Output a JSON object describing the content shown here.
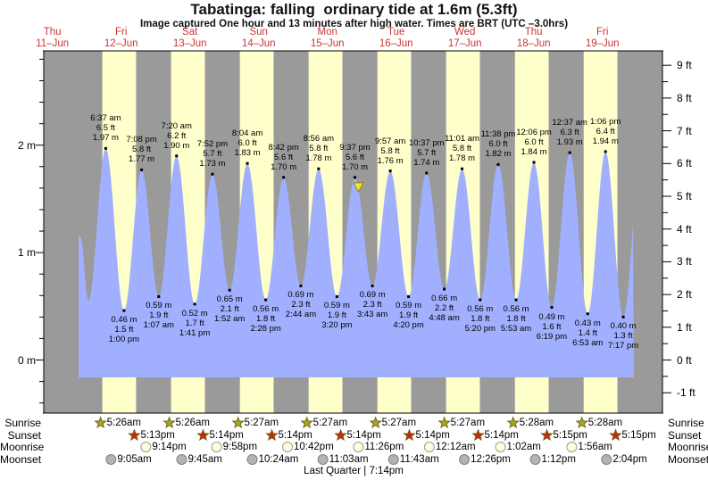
{
  "title": "Tabatinga: falling  ordinary tide at 1.6m (5.3ft)",
  "subtitle": "Image captured One hour and 13 minutes after high water. Times are BRT (UTC –3.0hrs)",
  "days": [
    {
      "weekday": "Thu",
      "date": "11–Jun"
    },
    {
      "weekday": "Fri",
      "date": "12–Jun"
    },
    {
      "weekday": "Sat",
      "date": "13–Jun"
    },
    {
      "weekday": "Sun",
      "date": "14–Jun"
    },
    {
      "weekday": "Mon",
      "date": "15–Jun"
    },
    {
      "weekday": "Tue",
      "date": "16–Jun"
    },
    {
      "weekday": "Wed",
      "date": "17–Jun"
    },
    {
      "weekday": "Thu",
      "date": "18–Jun"
    },
    {
      "weekday": "Fri",
      "date": "19–Jun"
    }
  ],
  "axes": {
    "left_labels": [
      {
        "text": "2 m",
        "m": 2
      },
      {
        "text": "1 m",
        "m": 1
      },
      {
        "text": "0 m",
        "m": 0
      }
    ],
    "right_labels": [
      {
        "text": "9 ft",
        "ft": 9
      },
      {
        "text": "8 ft",
        "ft": 8
      },
      {
        "text": "7 ft",
        "ft": 7
      },
      {
        "text": "6 ft",
        "ft": 6
      },
      {
        "text": "5 ft",
        "ft": 5
      },
      {
        "text": "4 ft",
        "ft": 4
      },
      {
        "text": "3 ft",
        "ft": 3
      },
      {
        "text": "2 ft",
        "ft": 2
      },
      {
        "text": "1 ft",
        "ft": 1
      },
      {
        "text": "0 ft",
        "ft": 0
      },
      {
        "text": "-1 ft",
        "ft": -1
      }
    ]
  },
  "chart_data": {
    "type": "area",
    "title": "Tabatinga tide heights, 11–19 Jun",
    "x_axis": {
      "days": 9,
      "first_day": "Thu 11–Jun",
      "last_day": "Fri 19–Jun"
    },
    "y_axis": {
      "left_unit": "m",
      "right_unit": "ft",
      "left_range": [
        -0.5,
        2.9
      ],
      "right_range": [
        -1,
        9
      ]
    },
    "current_level": {
      "m": 1.6,
      "ft": 5.3,
      "state": "falling",
      "day": 4,
      "hour": 22.83
    },
    "tides": [
      {
        "type": "high",
        "day": 1,
        "hour": 6.617,
        "time": "6:37 am",
        "ft": "6.5 ft",
        "m": "1.97 m",
        "value_m": 1.97
      },
      {
        "type": "high",
        "day": 1,
        "hour": 19.133,
        "time": "7:08 pm",
        "ft": "5.8 ft",
        "m": "1.77 m",
        "value_m": 1.77
      },
      {
        "type": "high",
        "day": 2,
        "hour": 7.333,
        "time": "7:20 am",
        "ft": "6.2 ft",
        "m": "1.90 m",
        "value_m": 1.9
      },
      {
        "type": "high",
        "day": 2,
        "hour": 19.867,
        "time": "7:52 pm",
        "ft": "5.7 ft",
        "m": "1.73 m",
        "value_m": 1.73
      },
      {
        "type": "high",
        "day": 3,
        "hour": 8.067,
        "time": "8:04 am",
        "ft": "6.0 ft",
        "m": "1.83 m",
        "value_m": 1.83
      },
      {
        "type": "high",
        "day": 3,
        "hour": 20.7,
        "time": "8:42 pm",
        "ft": "5.6 ft",
        "m": "1.70 m",
        "value_m": 1.7
      },
      {
        "type": "high",
        "day": 4,
        "hour": 8.933,
        "time": "8:56 am",
        "ft": "5.8 ft",
        "m": "1.78 m",
        "value_m": 1.78
      },
      {
        "type": "high",
        "day": 4,
        "hour": 21.617,
        "time": "9:37 pm",
        "ft": "5.6 ft",
        "m": "1.70 m",
        "value_m": 1.7
      },
      {
        "type": "high",
        "day": 5,
        "hour": 9.95,
        "time": "9:57 am",
        "ft": "5.8 ft",
        "m": "1.76 m",
        "value_m": 1.76
      },
      {
        "type": "high",
        "day": 5,
        "hour": 22.617,
        "time": "10:37 pm",
        "ft": "5.7 ft",
        "m": "1.74 m",
        "value_m": 1.74
      },
      {
        "type": "high",
        "day": 6,
        "hour": 11.017,
        "time": "11:01 am",
        "ft": "5.8 ft",
        "m": "1.78 m",
        "value_m": 1.78
      },
      {
        "type": "high",
        "day": 6,
        "hour": 23.633,
        "time": "11:38 pm",
        "ft": "6.0 ft",
        "m": "1.82 m",
        "value_m": 1.82
      },
      {
        "type": "high",
        "day": 7,
        "hour": 12.1,
        "time": "12:06 pm",
        "ft": "6.0 ft",
        "m": "1.84 m",
        "value_m": 1.84
      },
      {
        "type": "high",
        "day": 8,
        "hour": 0.617,
        "time": "12:37 am",
        "ft": "6.3 ft",
        "m": "1.93 m",
        "value_m": 1.93
      },
      {
        "type": "high",
        "day": 8,
        "hour": 13.1,
        "time": "1:06 pm",
        "ft": "6.4 ft",
        "m": "1.94 m",
        "value_m": 1.94
      },
      {
        "type": "low",
        "day": 1,
        "hour": 13.0,
        "time": "1:00 pm",
        "ft": "1.5 ft",
        "m": "0.46 m",
        "value_m": 0.46
      },
      {
        "type": "low",
        "day": 2,
        "hour": 1.117,
        "time": "1:07 am",
        "ft": "1.9 ft",
        "m": "0.59 m",
        "value_m": 0.59
      },
      {
        "type": "low",
        "day": 2,
        "hour": 13.683,
        "time": "1:41 pm",
        "ft": "1.7 ft",
        "m": "0.52 m",
        "value_m": 0.52
      },
      {
        "type": "low",
        "day": 3,
        "hour": 1.867,
        "time": "1:52 am",
        "ft": "2.1 ft",
        "m": "0.65 m",
        "value_m": 0.65
      },
      {
        "type": "low",
        "day": 3,
        "hour": 14.467,
        "time": "2:28 pm",
        "ft": "1.8 ft",
        "m": "0.56 m",
        "value_m": 0.56
      },
      {
        "type": "low",
        "day": 4,
        "hour": 2.733,
        "time": "2:44 am",
        "ft": "2.3 ft",
        "m": "0.69 m",
        "value_m": 0.69
      },
      {
        "type": "low",
        "day": 4,
        "hour": 15.333,
        "time": "3:20 pm",
        "ft": "1.9 ft",
        "m": "0.59 m",
        "value_m": 0.59
      },
      {
        "type": "low",
        "day": 5,
        "hour": 3.717,
        "time": "3:43 am",
        "ft": "2.3 ft",
        "m": "0.69 m",
        "value_m": 0.69
      },
      {
        "type": "low",
        "day": 5,
        "hour": 16.333,
        "time": "4:20 pm",
        "ft": "1.9 ft",
        "m": "0.59 m",
        "value_m": 0.59
      },
      {
        "type": "low",
        "day": 6,
        "hour": 4.8,
        "time": "4:48 am",
        "ft": "2.2 ft",
        "m": "0.66 m",
        "value_m": 0.66
      },
      {
        "type": "low",
        "day": 6,
        "hour": 17.333,
        "time": "5:20 pm",
        "ft": "1.8 ft",
        "m": "0.56 m",
        "value_m": 0.56
      },
      {
        "type": "low",
        "day": 7,
        "hour": 5.883,
        "time": "5:53 am",
        "ft": "1.8 ft",
        "m": "0.56 m",
        "value_m": 0.56
      },
      {
        "type": "low",
        "day": 7,
        "hour": 18.317,
        "time": "6:19 pm",
        "ft": "1.6 ft",
        "m": "0.49 m",
        "value_m": 0.49
      },
      {
        "type": "low",
        "day": 8,
        "hour": 6.883,
        "time": "6:53 am",
        "ft": "1.4 ft",
        "m": "0.43 m",
        "value_m": 0.43
      },
      {
        "type": "low",
        "day": 8,
        "hour": 19.283,
        "time": "7:17 pm",
        "ft": "1.3 ft",
        "m": "0.40 m",
        "value_m": 0.4
      }
    ],
    "curve_anchors": [
      [
        0,
        21.8,
        1.15
      ],
      [
        1,
        0.55,
        0.55
      ],
      [
        1,
        6.617,
        1.97
      ],
      [
        1,
        13.0,
        0.46
      ],
      [
        1,
        19.133,
        1.77
      ],
      [
        2,
        1.117,
        0.59
      ],
      [
        2,
        7.333,
        1.9
      ],
      [
        2,
        13.683,
        0.52
      ],
      [
        2,
        19.867,
        1.73
      ],
      [
        3,
        1.867,
        0.65
      ],
      [
        3,
        8.067,
        1.83
      ],
      [
        3,
        14.467,
        0.56
      ],
      [
        3,
        20.7,
        1.7
      ],
      [
        4,
        2.733,
        0.69
      ],
      [
        4,
        8.933,
        1.78
      ],
      [
        4,
        15.333,
        0.59
      ],
      [
        4,
        21.617,
        1.7
      ],
      [
        5,
        3.717,
        0.69
      ],
      [
        5,
        9.95,
        1.76
      ],
      [
        5,
        16.333,
        0.59
      ],
      [
        5,
        22.617,
        1.74
      ],
      [
        6,
        4.8,
        0.66
      ],
      [
        6,
        11.017,
        1.78
      ],
      [
        6,
        17.333,
        0.56
      ],
      [
        6,
        23.633,
        1.82
      ],
      [
        7,
        5.883,
        0.56
      ],
      [
        7,
        12.1,
        1.84
      ],
      [
        7,
        18.317,
        0.49
      ],
      [
        8,
        0.617,
        1.93
      ],
      [
        8,
        6.883,
        0.43
      ],
      [
        8,
        13.1,
        1.94
      ],
      [
        8,
        19.283,
        0.4
      ],
      [
        9,
        1.617,
        1.95
      ]
    ],
    "daylight_days": [
      1,
      2,
      3,
      4,
      5,
      6,
      7,
      8
    ]
  },
  "astro": {
    "row_labels": [
      "Sunrise",
      "Sunset",
      "Moonrise",
      "Moonset"
    ],
    "sunrise": [
      {
        "day": 1,
        "hour": 5.433,
        "time": "5:26am"
      },
      {
        "day": 2,
        "hour": 5.433,
        "time": "5:26am"
      },
      {
        "day": 3,
        "hour": 5.45,
        "time": "5:27am"
      },
      {
        "day": 4,
        "hour": 5.45,
        "time": "5:27am"
      },
      {
        "day": 5,
        "hour": 5.45,
        "time": "5:27am"
      },
      {
        "day": 6,
        "hour": 5.45,
        "time": "5:27am"
      },
      {
        "day": 7,
        "hour": 5.467,
        "time": "5:28am"
      },
      {
        "day": 8,
        "hour": 5.467,
        "time": "5:28am"
      }
    ],
    "sunset": [
      {
        "day": 1,
        "hour": 17.217,
        "time": "5:13pm"
      },
      {
        "day": 2,
        "hour": 17.233,
        "time": "5:14pm"
      },
      {
        "day": 3,
        "hour": 17.233,
        "time": "5:14pm"
      },
      {
        "day": 4,
        "hour": 17.233,
        "time": "5:14pm"
      },
      {
        "day": 5,
        "hour": 17.233,
        "time": "5:14pm"
      },
      {
        "day": 6,
        "hour": 17.233,
        "time": "5:14pm"
      },
      {
        "day": 7,
        "hour": 17.25,
        "time": "5:15pm"
      },
      {
        "day": 8,
        "hour": 17.25,
        "time": "5:15pm"
      }
    ],
    "moonrise": [
      {
        "day": 1,
        "hour": 21.233,
        "time": "9:14pm"
      },
      {
        "day": 2,
        "hour": 21.967,
        "time": "9:58pm"
      },
      {
        "day": 3,
        "hour": 22.7,
        "time": "10:42pm"
      },
      {
        "day": 4,
        "hour": 23.433,
        "time": "11:26pm"
      },
      {
        "day": 6,
        "hour": 0.2,
        "time": "12:12am"
      },
      {
        "day": 7,
        "hour": 1.033,
        "time": "1:02am"
      },
      {
        "day": 8,
        "hour": 1.933,
        "time": "1:56am"
      }
    ],
    "moonset": [
      {
        "day": 1,
        "hour": 9.083,
        "time": "9:05am"
      },
      {
        "day": 2,
        "hour": 9.75,
        "time": "9:45am"
      },
      {
        "day": 3,
        "hour": 10.4,
        "time": "10:24am"
      },
      {
        "day": 4,
        "hour": 11.05,
        "time": "11:03am"
      },
      {
        "day": 5,
        "hour": 11.717,
        "time": "11:43am"
      },
      {
        "day": 6,
        "hour": 12.433,
        "time": "12:26pm"
      },
      {
        "day": 7,
        "hour": 13.2,
        "time": "1:12pm"
      },
      {
        "day": 8,
        "hour": 14.067,
        "time": "2:04pm"
      }
    ],
    "footer": "Last Quarter | 7:14pm"
  },
  "colors": {
    "night_band": "#9a9a9a",
    "daylight_band": "#ffffcc",
    "water": "#a0b0fe",
    "day_label": "#cc3333",
    "sunrise_star": "#aaa820",
    "sunset_star": "#cc2418",
    "moonrise_circle": "#ffffdd",
    "moonset_circle": "#b3b3b3",
    "current_marker": "#f5e23c"
  }
}
